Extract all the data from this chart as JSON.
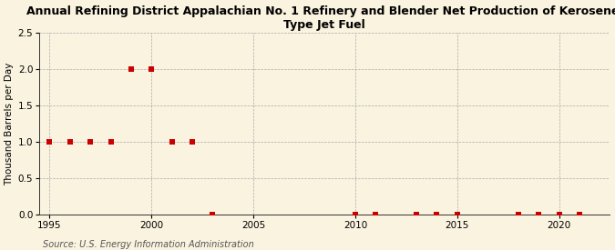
{
  "title": "Annual Refining District Appalachian No. 1 Refinery and Blender Net Production of Kerosene-\nType Jet Fuel",
  "ylabel": "Thousand Barrels per Day",
  "source": "Source: U.S. Energy Information Administration",
  "background_color": "#faf3e0",
  "plot_bg_color": "#faf3e0",
  "xlim": [
    1994.5,
    2022.5
  ],
  "ylim": [
    0,
    2.5
  ],
  "yticks": [
    0.0,
    0.5,
    1.0,
    1.5,
    2.0,
    2.5
  ],
  "xticks": [
    1995,
    2000,
    2005,
    2010,
    2015,
    2020
  ],
  "data_x": [
    1995,
    1996,
    1997,
    1998,
    1999,
    2000,
    2001,
    2002,
    2003,
    2010,
    2011,
    2013,
    2014,
    2015,
    2018,
    2019,
    2020,
    2021
  ],
  "data_y": [
    1.0,
    1.0,
    1.0,
    1.0,
    2.0,
    2.0,
    1.0,
    1.0,
    0.0,
    0.0,
    0.0,
    0.0,
    0.0,
    0.0,
    0.0,
    0.0,
    0.0,
    0.0
  ],
  "marker_color": "#cc0000",
  "marker_size": 4,
  "grid_color": "#aaaaaa",
  "title_fontsize": 9,
  "axis_label_fontsize": 7.5,
  "tick_fontsize": 7.5,
  "source_fontsize": 7
}
